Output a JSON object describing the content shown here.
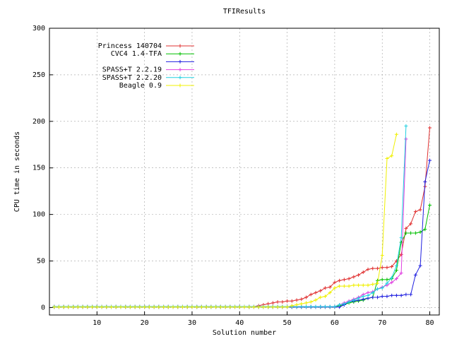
{
  "chart_data": {
    "type": "line",
    "title": "TFIResults",
    "x_label": "Solution number",
    "y_label": "CPU time in seconds",
    "xlim": [
      0,
      82
    ],
    "ylim": [
      -8,
      300
    ],
    "xticks": [
      10,
      20,
      30,
      40,
      50,
      60,
      70,
      80
    ],
    "yticks": [
      0,
      50,
      100,
      150,
      200,
      250,
      300
    ],
    "grid": true,
    "legend": "top-left",
    "x": [
      1,
      2,
      3,
      4,
      5,
      6,
      7,
      8,
      9,
      10,
      11,
      12,
      13,
      14,
      15,
      16,
      17,
      18,
      19,
      20,
      21,
      22,
      23,
      24,
      25,
      26,
      27,
      28,
      29,
      30,
      31,
      32,
      33,
      34,
      35,
      36,
      37,
      38,
      39,
      40,
      41,
      42,
      43,
      44,
      45,
      46,
      47,
      48,
      49,
      50,
      51,
      52,
      53,
      54,
      55,
      56,
      57,
      58,
      59,
      60,
      61,
      62,
      63,
      64,
      65,
      66,
      67,
      68,
      69,
      70,
      71,
      72,
      73,
      74,
      75,
      76,
      77,
      78,
      79,
      80
    ],
    "series": [
      {
        "name": "Princess 140704",
        "color": "#e03030",
        "values": [
          1,
          1,
          1,
          1,
          1,
          1,
          1,
          1,
          1,
          1,
          1,
          1,
          1,
          1,
          1,
          1,
          1,
          1,
          1,
          1,
          1,
          1,
          1,
          1,
          1,
          1,
          1,
          1,
          1,
          1,
          1,
          1,
          1,
          1,
          1,
          1,
          1,
          1,
          1,
          1,
          1,
          1,
          1,
          2,
          3,
          4,
          5,
          6,
          6,
          7,
          7,
          8,
          9,
          11,
          14,
          16,
          18,
          21,
          22,
          27,
          29,
          30,
          31,
          33,
          35,
          38,
          41,
          42,
          42,
          43,
          43,
          44,
          50,
          57,
          85,
          90,
          103,
          105,
          130,
          193
        ]
      },
      {
        "name": "CVC4 1.4-TFA",
        "color": "#00c000",
        "values": [
          0.5,
          0.5,
          0.5,
          0.5,
          0.5,
          0.5,
          0.5,
          0.5,
          0.5,
          0.5,
          0.5,
          0.5,
          0.5,
          0.5,
          0.5,
          0.5,
          0.5,
          0.5,
          0.5,
          0.5,
          0.5,
          0.5,
          0.5,
          0.5,
          0.5,
          0.5,
          0.5,
          0.5,
          0.5,
          0.5,
          0.5,
          0.5,
          0.5,
          0.5,
          0.5,
          0.5,
          0.5,
          0.5,
          0.5,
          0.5,
          0.5,
          0.5,
          0.5,
          0.5,
          0.5,
          0.5,
          0.5,
          0.5,
          0.5,
          0.5,
          0.5,
          0.5,
          0.5,
          0.5,
          0.5,
          0.5,
          0.5,
          0.5,
          0.5,
          0.5,
          2,
          3,
          5,
          6,
          7,
          8,
          10,
          11,
          29,
          30,
          30,
          31,
          40,
          70,
          80,
          80,
          80,
          81,
          84,
          110
        ]
      },
      {
        "name": null,
        "color": "#2020e0",
        "values": [
          0.5,
          0.5,
          0.5,
          0.5,
          0.5,
          0.5,
          0.5,
          0.5,
          0.5,
          0.5,
          0.5,
          0.5,
          0.5,
          0.5,
          0.5,
          0.5,
          0.5,
          0.5,
          0.5,
          0.5,
          0.5,
          0.5,
          0.5,
          0.5,
          0.5,
          0.5,
          0.5,
          0.5,
          0.5,
          0.5,
          0.5,
          0.5,
          0.5,
          0.5,
          0.5,
          0.5,
          0.5,
          0.5,
          0.5,
          0.5,
          0.5,
          0.5,
          0.5,
          0.5,
          0.5,
          0.5,
          0.5,
          0.5,
          0.5,
          0.5,
          0.5,
          0.5,
          0.5,
          0.5,
          0.5,
          0.5,
          0.5,
          0.5,
          0.5,
          0.5,
          0.5,
          3,
          6,
          7,
          8,
          9,
          10,
          11,
          11,
          12,
          12,
          13,
          13,
          13,
          14,
          14,
          35,
          45,
          135,
          158
        ]
      },
      {
        "name": "SPASS+T 2.2.19",
        "color": "#e040e0",
        "values": [
          1,
          1,
          1,
          1,
          1,
          1,
          1,
          1,
          1,
          1,
          1,
          1,
          1,
          1,
          1,
          1,
          1,
          1,
          1,
          1,
          1,
          1,
          1,
          1,
          1,
          1,
          1,
          1,
          1,
          1,
          1,
          1,
          1,
          1,
          1,
          1,
          1,
          1,
          1,
          1,
          1,
          1,
          1,
          1,
          1,
          1,
          1,
          1,
          1,
          1,
          1,
          1,
          1,
          1,
          1,
          1,
          1,
          1,
          1,
          1,
          3,
          5,
          7,
          9,
          11,
          14,
          16,
          17,
          20,
          22,
          24,
          27,
          31,
          37,
          181,
          null,
          null,
          null,
          null,
          null
        ]
      },
      {
        "name": "SPASS+T 2.2.20",
        "color": "#20d0e0",
        "values": [
          1,
          1,
          1,
          1,
          1,
          1,
          1,
          1,
          1,
          1,
          1,
          1,
          1,
          1,
          1,
          1,
          1,
          1,
          1,
          1,
          1,
          1,
          1,
          1,
          1,
          1,
          1,
          1,
          1,
          1,
          1,
          1,
          1,
          1,
          1,
          1,
          1,
          1,
          1,
          1,
          1,
          1,
          1,
          1,
          1,
          1,
          1,
          1,
          1,
          1,
          1,
          1,
          1,
          1,
          1,
          1,
          1,
          1,
          1,
          1,
          3,
          4,
          6,
          8,
          10,
          12,
          13,
          16,
          20,
          21,
          26,
          32,
          45,
          75,
          195,
          null,
          null,
          null,
          null,
          null
        ]
      },
      {
        "name": "Beagle 0.9",
        "color": "#f0f000",
        "values": [
          0.5,
          0.5,
          0.5,
          0.5,
          0.5,
          0.5,
          0.5,
          0.5,
          0.5,
          0.5,
          0.5,
          0.5,
          0.5,
          0.5,
          0.5,
          0.5,
          0.5,
          0.5,
          0.5,
          0.5,
          0.5,
          0.5,
          0.5,
          0.5,
          0.5,
          0.5,
          0.5,
          0.5,
          0.5,
          0.5,
          0.5,
          0.5,
          0.5,
          0.5,
          0.5,
          0.5,
          0.5,
          0.5,
          0.5,
          0.5,
          0.5,
          0.5,
          0.5,
          0.5,
          0.5,
          0.5,
          0.5,
          0.5,
          0.5,
          0.5,
          2,
          3,
          4,
          5,
          6,
          8,
          11,
          12,
          16,
          21,
          23,
          23,
          23,
          24,
          24,
          24,
          24,
          25,
          26,
          56,
          160,
          163,
          186,
          null,
          null,
          null,
          null,
          null,
          null,
          null
        ]
      }
    ]
  }
}
